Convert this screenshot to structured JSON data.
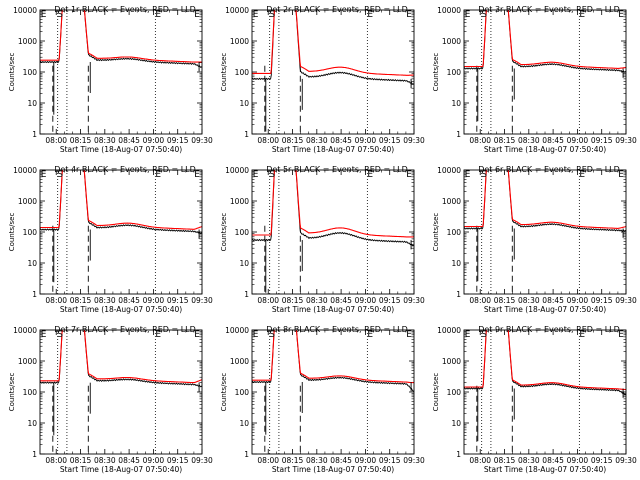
{
  "chart_data": [
    {
      "type": "line",
      "title": "Det 1r BLACK = Events, RED = LLD",
      "xlabel": "Start Time (18-Aug-07 07:50:40)",
      "ylabel": "Counts/sec",
      "yscale": "log",
      "ylim": [
        1,
        10000
      ],
      "xlim": [
        7.833,
        9.5
      ],
      "x_ticks": [
        "08:00",
        "08:15",
        "08:30",
        "08:45",
        "09:00",
        "09:15",
        "09:30"
      ],
      "y_ticks": [
        "1",
        "10",
        "100",
        "1000",
        "10000"
      ],
      "markers": [
        "E",
        "S",
        "E",
        "E"
      ],
      "black_base": 210,
      "red_base": 240,
      "hump": 1.2,
      "tail_black": 140,
      "tail_red": 210
    },
    {
      "type": "line",
      "title": "Det 2r BLACK = Events, RED = LLD",
      "xlabel": "Start Time (18-Aug-07 07:50:40)",
      "ylabel": "Counts/sec",
      "yscale": "log",
      "ylim": [
        1,
        10000
      ],
      "xlim": [
        7.833,
        9.5
      ],
      "x_ticks": [
        "08:00",
        "08:15",
        "08:30",
        "08:45",
        "09:00",
        "09:15",
        "09:30"
      ],
      "y_ticks": [
        "1",
        "10",
        "100",
        "1000",
        "10000"
      ],
      "markers": [
        "E",
        "S",
        "E",
        "E"
      ],
      "black_base": 60,
      "red_base": 90,
      "hump": 1.5,
      "tail_black": 40,
      "tail_red": 80
    },
    {
      "type": "line",
      "title": "Det 3r BLACK = Events, RED = LLD",
      "xlabel": "Start Time (18-Aug-07 07:50:40)",
      "ylabel": "Counts/sec",
      "yscale": "log",
      "ylim": [
        1,
        10000
      ],
      "xlim": [
        7.833,
        9.5
      ],
      "x_ticks": [
        "08:00",
        "08:15",
        "08:30",
        "08:45",
        "09:00",
        "09:15",
        "09:30"
      ],
      "y_ticks": [
        "1",
        "10",
        "100",
        "1000",
        "10000"
      ],
      "markers": [
        "E",
        "S",
        "E",
        "E"
      ],
      "black_base": 130,
      "red_base": 150,
      "hump": 1.3,
      "tail_black": 100,
      "tail_red": 140
    },
    {
      "type": "line",
      "title": "Det 4r BLACK = Events, RED = LLD",
      "xlabel": "Start Time (18-Aug-07 07:50:40)",
      "ylabel": "Counts/sec",
      "yscale": "log",
      "ylim": [
        1,
        10000
      ],
      "xlim": [
        7.833,
        9.5
      ],
      "x_ticks": [
        "08:00",
        "08:15",
        "08:30",
        "08:45",
        "09:00",
        "09:15",
        "09:30"
      ],
      "y_ticks": [
        "1",
        "10",
        "100",
        "1000",
        "10000"
      ],
      "markers": [
        "E",
        "S",
        "E",
        "E"
      ],
      "black_base": 120,
      "red_base": 140,
      "hump": 1.3,
      "tail_black": 90,
      "tail_red": 150
    },
    {
      "type": "line",
      "title": "Det 5r BLACK = Events, RED = LLD",
      "xlabel": "Start Time (18-Aug-07 07:50:40)",
      "ylabel": "Counts/sec",
      "yscale": "log",
      "ylim": [
        1,
        10000
      ],
      "xlim": [
        7.833,
        9.5
      ],
      "x_ticks": [
        "08:00",
        "08:15",
        "08:30",
        "08:45",
        "09:00",
        "09:15",
        "09:30"
      ],
      "y_ticks": [
        "1",
        "10",
        "100",
        "1000",
        "10000"
      ],
      "markers": [
        "E",
        "S",
        "E",
        "E"
      ],
      "black_base": 55,
      "red_base": 80,
      "hump": 1.6,
      "tail_black": 35,
      "tail_red": 70
    },
    {
      "type": "line",
      "title": "Det 6r BLACK = Events, RED = LLD",
      "xlabel": "Start Time (18-Aug-07 07:50:40)",
      "ylabel": "Counts/sec",
      "yscale": "log",
      "ylim": [
        1,
        10000
      ],
      "xlim": [
        7.833,
        9.5
      ],
      "x_ticks": [
        "08:00",
        "08:15",
        "08:30",
        "08:45",
        "09:00",
        "09:15",
        "09:30"
      ],
      "y_ticks": [
        "1",
        "10",
        "100",
        "1000",
        "10000"
      ],
      "markers": [
        "E",
        "S",
        "E",
        "E"
      ],
      "black_base": 130,
      "red_base": 150,
      "hump": 1.3,
      "tail_black": 110,
      "tail_red": 150
    },
    {
      "type": "line",
      "title": "Det 7r BLACK = Events, RED = LLD",
      "xlabel": "Start Time (18-Aug-07 07:50:40)",
      "ylabel": "Counts/sec",
      "yscale": "log",
      "ylim": [
        1,
        10000
      ],
      "xlim": [
        7.833,
        9.5
      ],
      "x_ticks": [
        "08:00",
        "08:15",
        "08:30",
        "08:45",
        "09:00",
        "09:15",
        "09:30"
      ],
      "y_ticks": [
        "1",
        "10",
        "100",
        "1000",
        "10000"
      ],
      "markers": [
        "E",
        "S",
        "E",
        "E"
      ],
      "black_base": 200,
      "red_base": 230,
      "hump": 1.2,
      "tail_black": 150,
      "tail_red": 250
    },
    {
      "type": "line",
      "title": "Det 8r BLACK = Events, RED = LLD",
      "xlabel": "Start Time (18-Aug-07 07:50:40)",
      "ylabel": "Counts/sec",
      "yscale": "log",
      "ylim": [
        1,
        10000
      ],
      "xlim": [
        7.833,
        9.5
      ],
      "x_ticks": [
        "08:00",
        "08:15",
        "08:30",
        "08:45",
        "09:00",
        "09:15",
        "09:30"
      ],
      "y_ticks": [
        "1",
        "10",
        "100",
        "1000",
        "10000"
      ],
      "markers": [
        "E",
        "S",
        "E",
        "E"
      ],
      "black_base": 210,
      "red_base": 240,
      "hump": 1.3,
      "tail_black": 100,
      "tail_red": 200
    },
    {
      "type": "line",
      "title": "Det 9r BLACK = Events, RED = LLD",
      "xlabel": "Start Time (18-Aug-07 07:50:40)",
      "ylabel": "Counts/sec",
      "yscale": "log",
      "ylim": [
        1,
        10000
      ],
      "xlim": [
        7.833,
        9.5
      ],
      "x_ticks": [
        "08:00",
        "08:15",
        "08:30",
        "08:45",
        "09:00",
        "09:15",
        "09:30"
      ],
      "y_ticks": [
        "1",
        "10",
        "100",
        "1000",
        "10000"
      ],
      "markers": [
        "E",
        "S",
        "E",
        "E"
      ],
      "black_base": 130,
      "red_base": 145,
      "hump": 1.3,
      "tail_black": 80,
      "tail_red": 120
    }
  ],
  "series_colors": {
    "events": "#000000",
    "lld": "#ff0000"
  }
}
